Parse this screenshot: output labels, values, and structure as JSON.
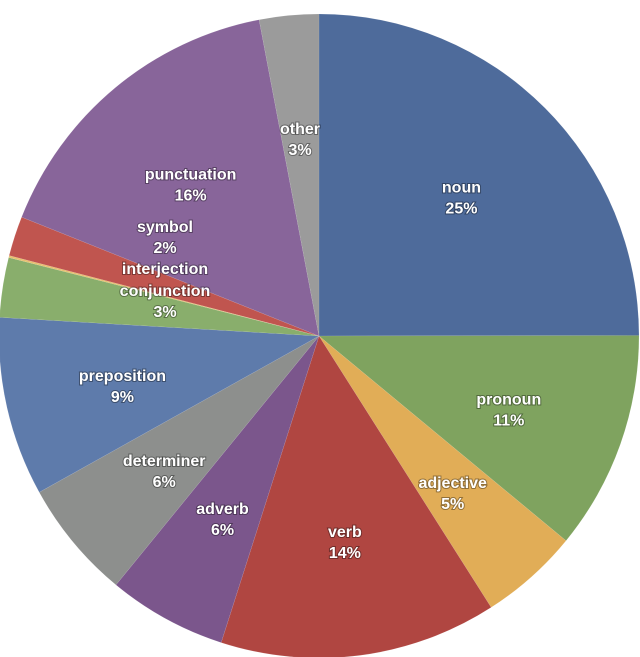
{
  "chart_data": {
    "type": "pie",
    "start_angle": "top, clockwise",
    "slices": [
      {
        "label": "noun",
        "value": 25,
        "pct_label": "25%",
        "color": "#4e6b9b"
      },
      {
        "label": "pronoun",
        "value": 11,
        "pct_label": "11%",
        "color": "#7fa35f"
      },
      {
        "label": "adjective",
        "value": 5,
        "pct_label": "5%",
        "color": "#e1ad57"
      },
      {
        "label": "verb",
        "value": 14,
        "pct_label": "14%",
        "color": "#b04641"
      },
      {
        "label": "adverb",
        "value": 6,
        "pct_label": "6%",
        "color": "#7b568c"
      },
      {
        "label": "determiner",
        "value": 6,
        "pct_label": "6%",
        "color": "#8d8f8d"
      },
      {
        "label": "preposition",
        "value": 9,
        "pct_label": "9%",
        "color": "#5e7bab"
      },
      {
        "label": "conjunction",
        "value": 3,
        "pct_label": "3%",
        "color": "#89ae6c"
      },
      {
        "label": "interjection",
        "value": 0.1,
        "pct_label": "",
        "color": "#e8c070"
      },
      {
        "label": "symbol",
        "value": 2,
        "pct_label": "2%",
        "color": "#c0554f"
      },
      {
        "label": "punctuation",
        "value": 16,
        "pct_label": "16%",
        "color": "#88659a"
      },
      {
        "label": "other",
        "value": 3,
        "pct_label": "3%",
        "color": "#9b9b9b"
      }
    ]
  }
}
